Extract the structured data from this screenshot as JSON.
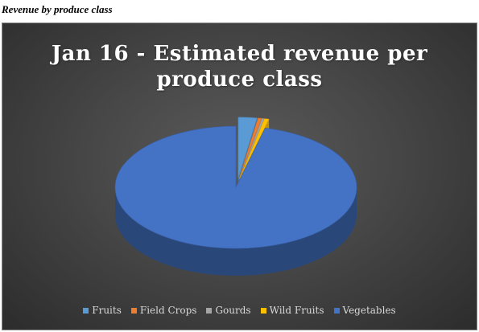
{
  "caption": "Revenue by produce class",
  "chart_data": {
    "type": "pie",
    "title_lines": [
      "Jan 16 - Estimated revenue per",
      "produce class"
    ],
    "categories": [
      "Fruits",
      "Field Crops",
      "Gourds",
      "Wild Fruits",
      "Vegetables"
    ],
    "values": [
      2.5,
      0.5,
      0.3,
      0.6,
      96.1
    ],
    "colors": [
      "#5b9bd5",
      "#ed7d31",
      "#a5a5a5",
      "#ffc000",
      "#4472c4"
    ],
    "legend_position": "bottom",
    "exploded_slices": [
      "Fruits",
      "Field Crops",
      "Gourds",
      "Wild Fruits"
    ]
  }
}
